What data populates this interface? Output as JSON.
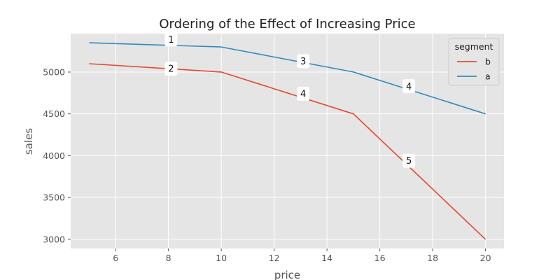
{
  "chart_data": {
    "type": "line",
    "title": "Ordering of the Effect of Increasing Price",
    "xlabel": "price",
    "ylabel": "sales",
    "xlim": [
      4.3,
      20.7
    ],
    "ylim": [
      2890,
      5460
    ],
    "xticks": [
      6,
      8,
      10,
      12,
      14,
      16,
      18,
      20
    ],
    "yticks": [
      3000,
      3500,
      4000,
      4500,
      5000
    ],
    "grid": true,
    "legend": {
      "title": "segment",
      "placement": "top-right"
    },
    "series": [
      {
        "name": "b",
        "color": "#e24a33",
        "x": [
          5,
          10,
          15,
          20
        ],
        "y": [
          5100,
          5000,
          4500,
          3000
        ]
      },
      {
        "name": "a",
        "color": "#348abd",
        "x": [
          5,
          10,
          15,
          20
        ],
        "y": [
          5350,
          5300,
          5000,
          4500
        ]
      }
    ],
    "annotations": [
      {
        "text": "1",
        "x": 8.1,
        "y": 5390
      },
      {
        "text": "2",
        "x": 8.1,
        "y": 5040
      },
      {
        "text": "3",
        "x": 13.1,
        "y": 5130
      },
      {
        "text": "4",
        "x": 13.1,
        "y": 4740
      },
      {
        "text": "4",
        "x": 17.1,
        "y": 4830
      },
      {
        "text": "5",
        "x": 17.1,
        "y": 3940
      }
    ]
  }
}
